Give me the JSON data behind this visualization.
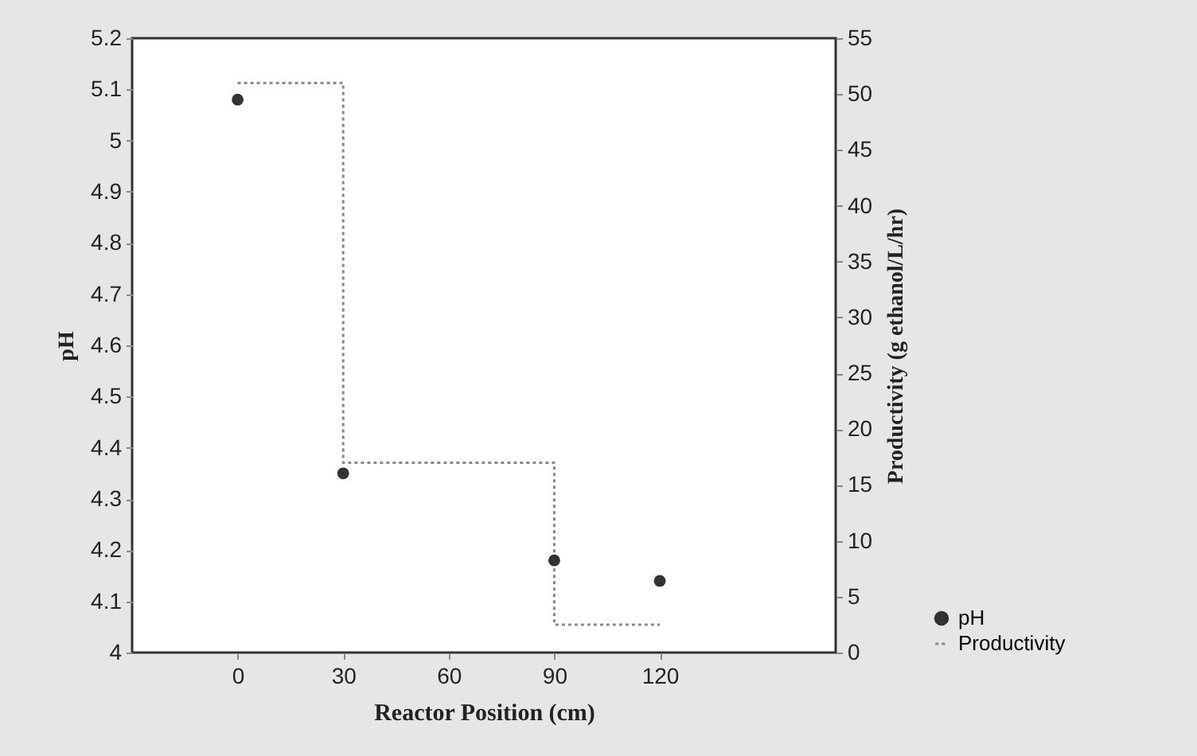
{
  "chart_data": {
    "type": "scatter",
    "xlabel": "Reactor Position (cm)",
    "ylabel": "pH",
    "y2label": "Productivity (g ethanol/L/hr)",
    "xlim": [
      -30,
      170
    ],
    "xticks": [
      0,
      30,
      60,
      90,
      120
    ],
    "ylim": [
      4,
      5.2
    ],
    "yticks": [
      4,
      4.1,
      4.2,
      4.3,
      4.4,
      4.5,
      4.6,
      4.7,
      4.8,
      4.9,
      5,
      5.1,
      5.2
    ],
    "y2lim": [
      0,
      55
    ],
    "y2ticks": [
      0,
      5,
      10,
      15,
      20,
      25,
      30,
      35,
      40,
      45,
      50,
      55
    ],
    "grid": false,
    "legend": "bottom right",
    "series": [
      {
        "name": "pH",
        "marker": "circle",
        "color": "#333333",
        "x": [
          0,
          30,
          90,
          120
        ],
        "values": [
          5.08,
          4.35,
          4.18,
          4.14
        ]
      },
      {
        "name": "Productivity",
        "type": "step",
        "axis": "y2",
        "line_style": "dotted",
        "marker": "none",
        "color": "#888888",
        "x": [
          0,
          30,
          90,
          120
        ],
        "values": [
          51,
          17,
          2.5,
          2.5
        ]
      }
    ]
  }
}
